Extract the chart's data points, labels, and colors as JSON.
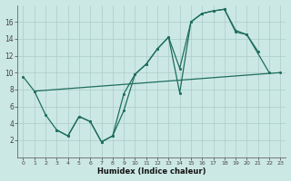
{
  "xlabel": "Humidex (Indice chaleur)",
  "background_color": "#cce8e4",
  "grid_color": "#aaccc8",
  "line_color": "#1e6e5e",
  "xlim": [
    -0.5,
    23.5
  ],
  "ylim": [
    0,
    18
  ],
  "xticks": [
    0,
    1,
    2,
    3,
    4,
    5,
    6,
    7,
    8,
    9,
    10,
    11,
    12,
    13,
    14,
    15,
    16,
    17,
    18,
    19,
    20,
    21,
    22,
    23
  ],
  "yticks": [
    2,
    4,
    6,
    8,
    10,
    12,
    14,
    16
  ],
  "line1_x": [
    0,
    1,
    2,
    3,
    4,
    5,
    6,
    7,
    8,
    9,
    10,
    11,
    12,
    13,
    14,
    15,
    16,
    17,
    18,
    19,
    20,
    21
  ],
  "line1_y": [
    9.5,
    7.8,
    5.0,
    3.2,
    2.5,
    4.8,
    4.2,
    1.8,
    2.5,
    7.5,
    9.8,
    11.0,
    12.8,
    14.2,
    10.5,
    16.0,
    17.0,
    17.3,
    17.5,
    15.0,
    14.5,
    12.5
  ],
  "line2_x": [
    1,
    23
  ],
  "line2_y": [
    7.8,
    10.0
  ],
  "line3_x": [
    3,
    4,
    5,
    6,
    7,
    8,
    9,
    10,
    11,
    12,
    13,
    14,
    15,
    16,
    17,
    18,
    19,
    20,
    22
  ],
  "line3_y": [
    3.2,
    2.5,
    4.8,
    4.2,
    1.8,
    2.5,
    5.5,
    9.8,
    11.0,
    12.8,
    14.2,
    7.6,
    16.0,
    17.0,
    17.3,
    17.5,
    14.8,
    14.5,
    10.0
  ]
}
